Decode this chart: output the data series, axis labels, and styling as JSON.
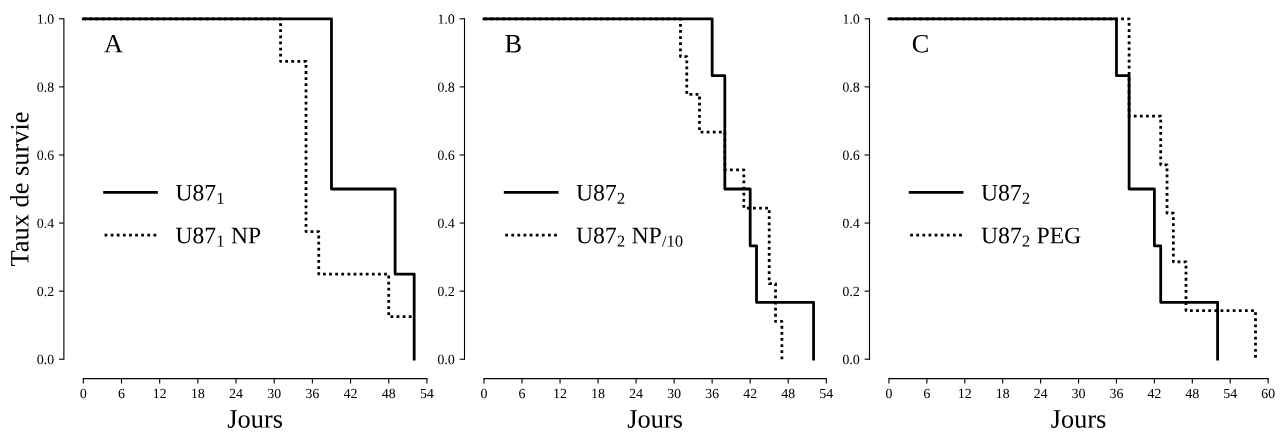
{
  "chart_data": [
    {
      "type": "step",
      "ylabel": "Taux de survie",
      "xlabel": "Jours",
      "annotations": [
        "A"
      ],
      "legend": "center left",
      "xlim": [
        0,
        54
      ],
      "xticks": [
        0,
        6,
        12,
        18,
        24,
        30,
        36,
        42,
        48,
        54
      ],
      "ylim": [
        0,
        1
      ],
      "yticks": [
        {
          "value": 0,
          "label": "0.0"
        },
        {
          "value": 0.2,
          "label": "0.2"
        },
        {
          "value": 0.4,
          "label": "0.4"
        },
        {
          "value": 0.6,
          "label": "0.6"
        },
        {
          "value": 0.8,
          "label": "0.8"
        },
        {
          "value": 1,
          "label": "1.0"
        }
      ],
      "series": [
        {
          "name": "U87$_{1}$",
          "color": "#000000",
          "line_style": "solid",
          "x": [
            0,
            39,
            49,
            52
          ],
          "values": [
            1,
            0.5,
            0.25,
            0
          ]
        },
        {
          "name": "U87$_{1}$ NP",
          "color": "#000000",
          "line_style": "dotted",
          "x": [
            0,
            31,
            35,
            37,
            48,
            52
          ],
          "values": [
            1,
            0.875,
            0.375,
            0.25,
            0.125,
            0.125
          ]
        }
      ]
    },
    {
      "type": "step",
      "xlabel": "Jours",
      "annotations": [
        "B"
      ],
      "legend": "center left",
      "xlim": [
        0,
        54
      ],
      "xticks": [
        0,
        6,
        12,
        18,
        24,
        30,
        36,
        42,
        48,
        54
      ],
      "ylim": [
        0,
        1
      ],
      "yticks": [
        {
          "value": 0,
          "label": "0.0"
        },
        {
          "value": 0.2,
          "label": "0.2"
        },
        {
          "value": 0.4,
          "label": "0.4"
        },
        {
          "value": 0.6,
          "label": "0.6"
        },
        {
          "value": 0.8,
          "label": "0.8"
        },
        {
          "value": 1,
          "label": "1.0"
        }
      ],
      "series": [
        {
          "name": "U87$_{2}$",
          "color": "#000000",
          "line_style": "solid",
          "x": [
            0,
            36,
            38,
            42,
            43,
            52
          ],
          "values": [
            1,
            0.833,
            0.5,
            0.333,
            0.167,
            0
          ]
        },
        {
          "name": "U87$_{2}$ NP$_{/10}$",
          "color": "#000000",
          "line_style": "dotted",
          "x": [
            0,
            31,
            32,
            34,
            38,
            41,
            45,
            46,
            47
          ],
          "values": [
            1,
            0.889,
            0.778,
            0.667,
            0.556,
            0.444,
            0.222,
            0.111,
            0
          ]
        }
      ]
    },
    {
      "type": "step",
      "xlabel": "Jours",
      "annotations": [
        "C"
      ],
      "legend": "center left",
      "xlim": [
        0,
        60
      ],
      "xticks": [
        0,
        6,
        12,
        18,
        24,
        30,
        36,
        42,
        48,
        54,
        60
      ],
      "ylim": [
        0,
        1
      ],
      "yticks": [
        {
          "value": 0,
          "label": "0.0"
        },
        {
          "value": 0.2,
          "label": "0.2"
        },
        {
          "value": 0.4,
          "label": "0.4"
        },
        {
          "value": 0.6,
          "label": "0.6"
        },
        {
          "value": 0.8,
          "label": "0.8"
        },
        {
          "value": 1,
          "label": "1.0"
        }
      ],
      "series": [
        {
          "name": "U87$_{2}$",
          "color": "#000000",
          "line_style": "solid",
          "x": [
            0,
            36,
            38,
            42,
            43,
            52
          ],
          "values": [
            1,
            0.833,
            0.5,
            0.333,
            0.167,
            0
          ]
        },
        {
          "name": "U87$_{2}$ PEG",
          "color": "#000000",
          "line_style": "dotted",
          "x": [
            0,
            38,
            43,
            44,
            45,
            47,
            58
          ],
          "values": [
            1,
            0.714,
            0.571,
            0.429,
            0.286,
            0.143,
            0
          ]
        }
      ]
    }
  ]
}
